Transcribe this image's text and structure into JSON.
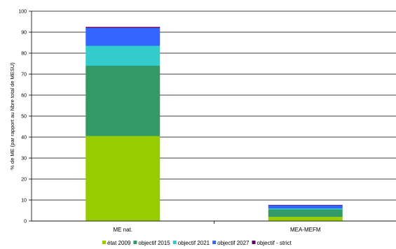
{
  "chart_data": {
    "type": "bar",
    "stacked": true,
    "title": "",
    "xlabel": "",
    "ylabel": "% de ME (par rapport au Nbre total de MESU)",
    "ylim": [
      0,
      100
    ],
    "yticks": [
      0,
      10,
      20,
      30,
      40,
      50,
      60,
      70,
      80,
      90,
      100
    ],
    "grid": true,
    "legend_position": "bottom",
    "categories": [
      "ME nat.",
      "MEA-MEFM"
    ],
    "series": [
      {
        "name": "état 2009",
        "color": "#99cc00",
        "values": [
          40.5,
          2.0
        ]
      },
      {
        "name": "objectif 2015",
        "color": "#339966",
        "values": [
          33.5,
          3.5
        ]
      },
      {
        "name": "objectif 2021",
        "color": "#33cccc",
        "values": [
          9.5,
          0.5
        ]
      },
      {
        "name": "objectif 2027",
        "color": "#3366ff",
        "values": [
          8.5,
          1.5
        ]
      },
      {
        "name": "objectif - strict",
        "color": "#660066",
        "values": [
          0.5,
          0.2
        ]
      }
    ]
  }
}
